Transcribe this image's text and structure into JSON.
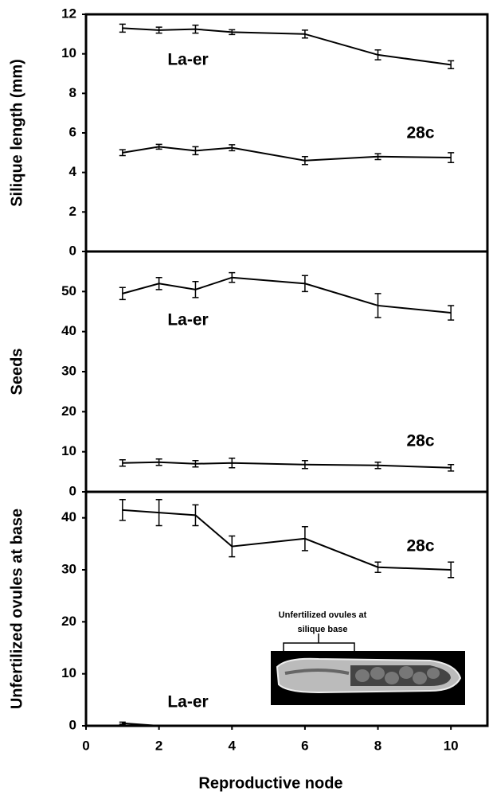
{
  "chart_data": [
    {
      "type": "line",
      "ylabel": "Silique length (mm)",
      "xlim": [
        0,
        11
      ],
      "ylim": [
        0,
        12
      ],
      "yticks": [
        0,
        2,
        4,
        6,
        8,
        10,
        12
      ],
      "x": [
        1,
        2,
        3,
        4,
        6,
        8,
        10
      ],
      "series": [
        {
          "name": "La-er",
          "color": "#000000",
          "values": [
            11.3,
            11.2,
            11.25,
            11.1,
            11.0,
            9.95,
            9.45
          ],
          "errors": [
            0.2,
            0.15,
            0.2,
            0.12,
            0.2,
            0.25,
            0.2
          ]
        },
        {
          "name": "28c",
          "color": "#000000",
          "values": [
            5.0,
            5.3,
            5.1,
            5.25,
            4.6,
            4.8,
            4.75
          ],
          "errors": [
            0.15,
            0.12,
            0.2,
            0.15,
            0.2,
            0.15,
            0.25
          ]
        }
      ]
    },
    {
      "type": "line",
      "ylabel": "Seeds",
      "xlim": [
        0,
        11
      ],
      "ylim": [
        0,
        60
      ],
      "yticks": [
        0,
        10,
        20,
        30,
        40,
        50
      ],
      "x": [
        1,
        2,
        3,
        4,
        6,
        8,
        10
      ],
      "series": [
        {
          "name": "La-er",
          "color": "#000000",
          "values": [
            49.5,
            52,
            50.5,
            53.5,
            52,
            46.5,
            44.7
          ],
          "errors": [
            1.5,
            1.5,
            2,
            1.2,
            2,
            3,
            1.8
          ]
        },
        {
          "name": "28c",
          "color": "#000000",
          "values": [
            7.2,
            7.4,
            7.0,
            7.2,
            6.8,
            6.6,
            6.0
          ],
          "errors": [
            0.8,
            0.8,
            0.8,
            1.2,
            1.0,
            0.8,
            0.8
          ]
        }
      ]
    },
    {
      "type": "line",
      "ylabel": "Unfertilized ovules at base",
      "xlabel": "Reproductive node",
      "xlim": [
        0,
        11
      ],
      "ylim": [
        0,
        45
      ],
      "yticks": [
        0,
        10,
        20,
        30,
        40
      ],
      "xticks": [
        0,
        2,
        4,
        6,
        8,
        10
      ],
      "x": [
        1,
        2,
        3,
        4,
        6,
        8,
        10
      ],
      "series": [
        {
          "name": "28c",
          "color": "#000000",
          "values": [
            41.5,
            41,
            40.5,
            34.5,
            36,
            30.5,
            30
          ],
          "errors": [
            2,
            2.5,
            2,
            2,
            2.3,
            1,
            1.5
          ]
        },
        {
          "name": "La-er",
          "color": "#000000",
          "values": [
            0.5,
            0,
            0,
            0,
            0,
            0,
            0
          ],
          "errors": [
            0.2,
            0,
            0,
            0,
            0,
            0,
            0
          ]
        }
      ],
      "annotation": [
        "Unfertilized ovules at",
        "silique base"
      ]
    }
  ]
}
